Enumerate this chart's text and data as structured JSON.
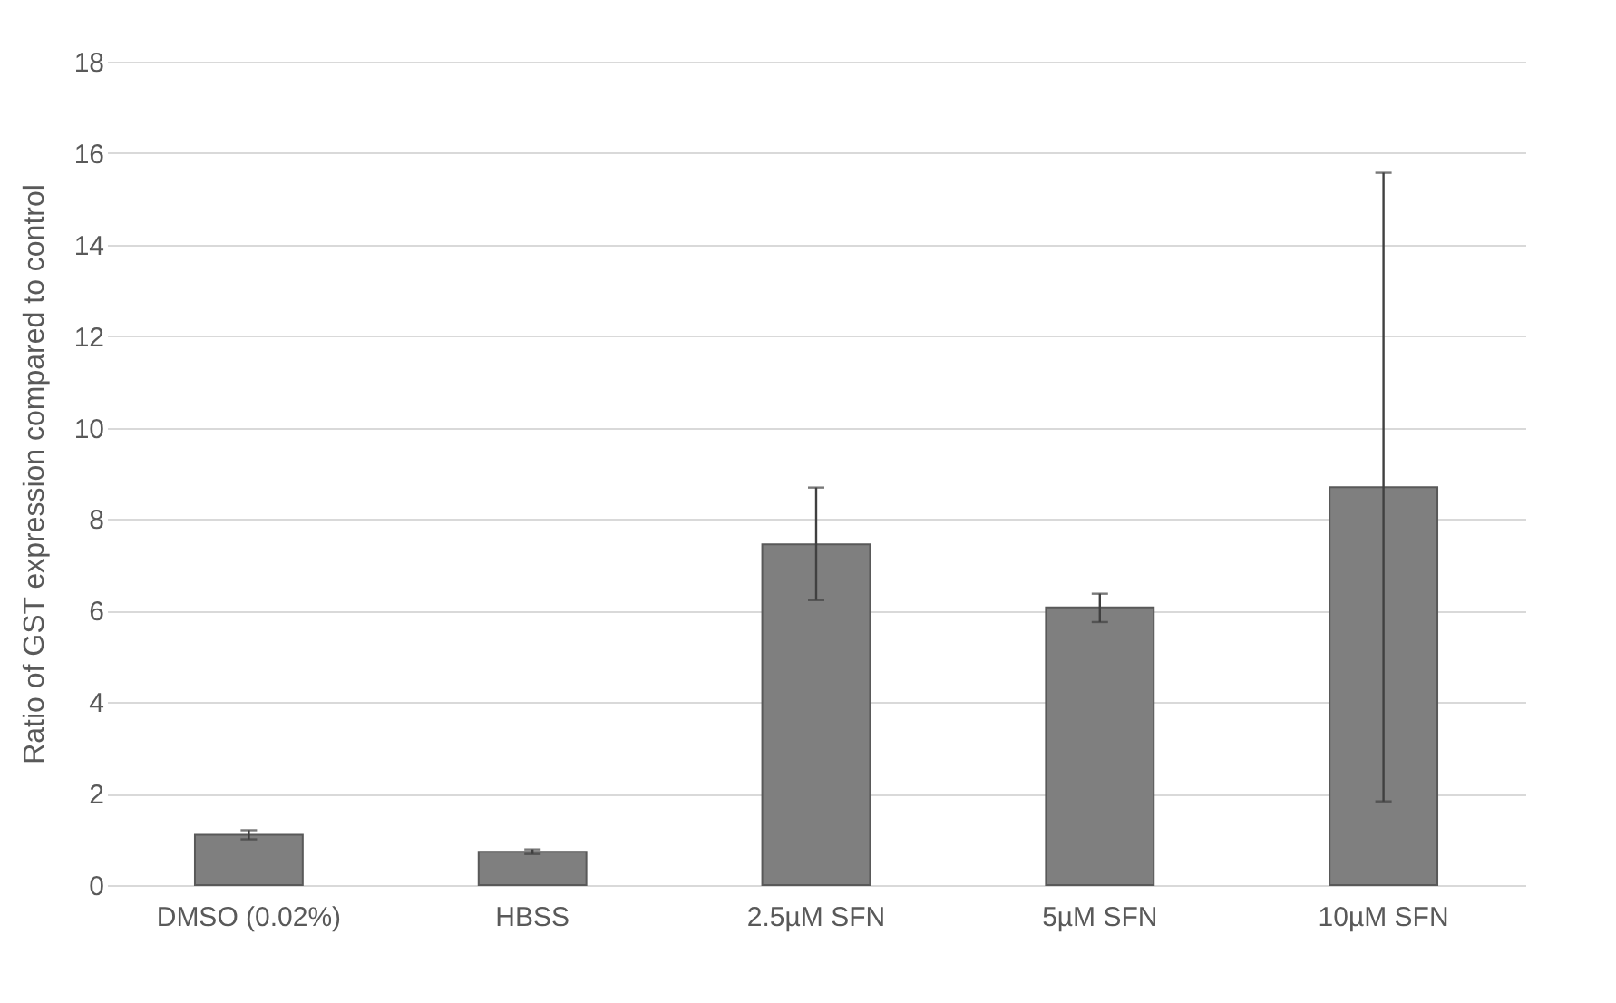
{
  "chart_data": {
    "type": "bar",
    "ylabel": "Ratio of GST expression compared to control",
    "categories": [
      "DMSO (0.02%)",
      "HBSS",
      "2.5µM SFN",
      "5µM SFN",
      "10µM SFN"
    ],
    "values": [
      1.1,
      0.73,
      7.45,
      6.07,
      8.7
    ],
    "errors": [
      [
        1.0,
        1.2
      ],
      [
        0.68,
        0.78
      ],
      [
        6.23,
        8.69
      ],
      [
        5.75,
        6.37
      ],
      [
        1.83,
        15.57
      ]
    ],
    "color": "#7f7f7f",
    "ylim": [
      0,
      18
    ],
    "yticks": [
      0,
      2,
      4,
      6,
      8,
      10,
      12,
      14,
      16,
      18
    ],
    "grid": "y"
  }
}
